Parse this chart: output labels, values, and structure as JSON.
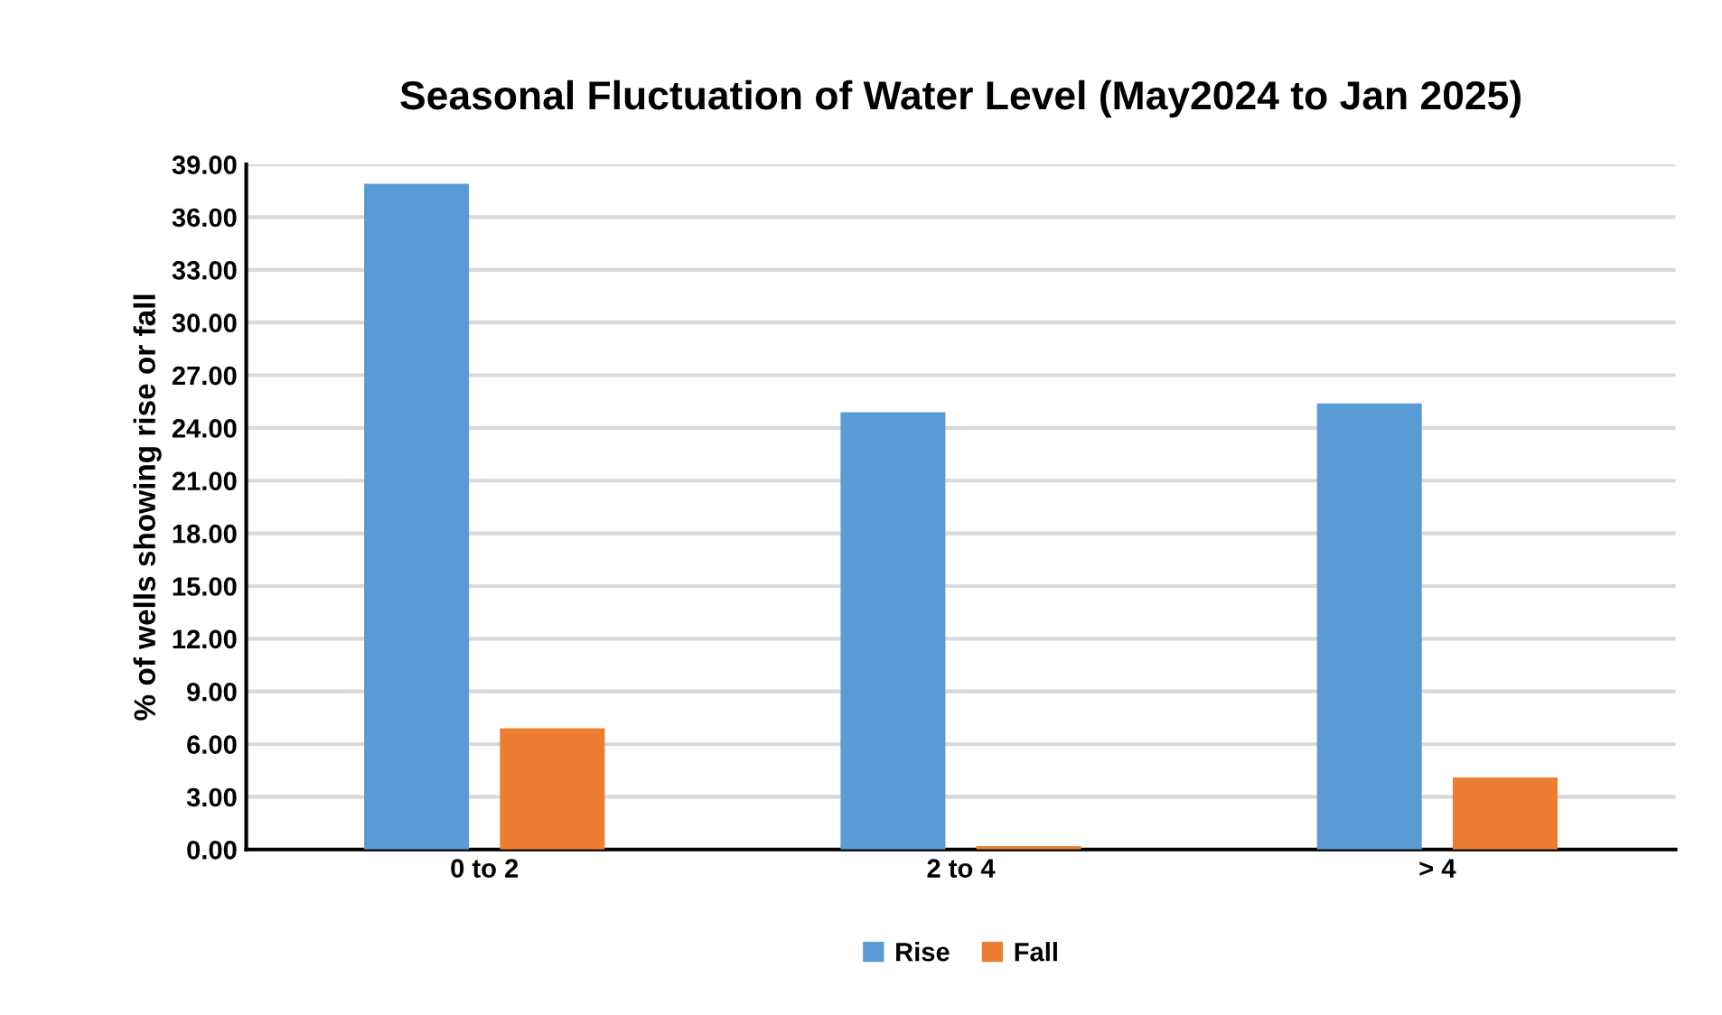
{
  "chart_data": {
    "type": "bar",
    "title": "Seasonal Fluctuation of Water Level (May2024 to Jan 2025)",
    "ylabel": "% of wells showing rise or fall",
    "categories": [
      "0 to 2",
      "2 to 4",
      "> 4"
    ],
    "series": [
      {
        "name": "Rise",
        "color": "#5b9bd5",
        "values": [
          37.9,
          24.9,
          25.4
        ]
      },
      {
        "name": "Fall",
        "color": "#ed7d31",
        "values": [
          6.9,
          0.2,
          4.1
        ]
      }
    ],
    "ylim": [
      0,
      39
    ],
    "yticks": [
      {
        "value": 0,
        "label": "0.00"
      },
      {
        "value": 3,
        "label": "3.00"
      },
      {
        "value": 6,
        "label": "6.00"
      },
      {
        "value": 9,
        "label": "9.00"
      },
      {
        "value": 12,
        "label": "12.00"
      },
      {
        "value": 15,
        "label": "15.00"
      },
      {
        "value": 18,
        "label": "18.00"
      },
      {
        "value": 21,
        "label": "21.00"
      },
      {
        "value": 24,
        "label": "24.00"
      },
      {
        "value": 27,
        "label": "27.00"
      },
      {
        "value": 30,
        "label": "30.00"
      },
      {
        "value": 33,
        "label": "33.00"
      },
      {
        "value": 36,
        "label": "36.00"
      },
      {
        "value": 39,
        "label": "39.00"
      }
    ],
    "grid": "y",
    "legend": "bottom"
  }
}
